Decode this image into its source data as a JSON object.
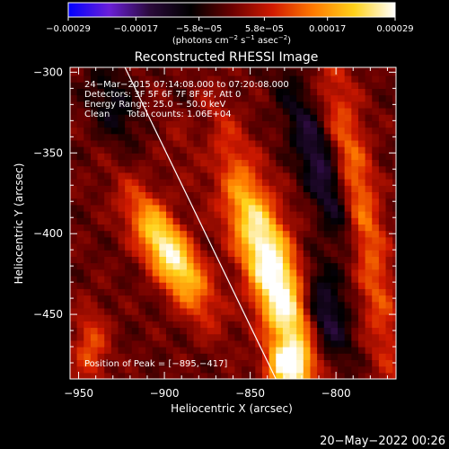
{
  "chart_data": {
    "type": "heatmap",
    "title": "Reconstructed RHESSI Image",
    "xlabel": "Heliocentric X (arcsec)",
    "ylabel": "Heliocentric Y (arcsec)",
    "xlim": [
      -955,
      -765
    ],
    "ylim": [
      -490,
      -297
    ],
    "x_ticks": [
      -950,
      -900,
      -850,
      -800
    ],
    "y_ticks": [
      -300,
      -350,
      -400,
      -450
    ],
    "x_tick_labels": [
      "−950",
      "−900",
      "−850",
      "−800"
    ],
    "y_tick_labels": [
      "−300",
      "−350",
      "−400",
      "−450"
    ],
    "colorbar": {
      "range": [
        -0.00029,
        0.00029
      ],
      "tick_values": [
        -0.00029,
        -0.00017,
        -5.8e-05,
        5.8e-05,
        0.00017,
        0.00029
      ],
      "tick_labels": [
        "−0.00029",
        "−0.00017",
        "−5.8e−05",
        "5.8e−05",
        "0.00017",
        "0.00029"
      ],
      "units_prefix": "(photons cm",
      "units_exp1": "−2",
      "units_mid1": " s",
      "units_exp2": "−1",
      "units_mid2": " asec",
      "units_exp3": "−2",
      "units_suffix": ")",
      "colors": [
        "#0000ff",
        "#6a1fd8",
        "#2a0a3a",
        "#000000",
        "#6a0000",
        "#d11a00",
        "#ff7a00",
        "#ffd21a",
        "#ffffff"
      ]
    },
    "annotations": {
      "time_range": "24−Mar−2015 07:14:08.000 to 07:20:08.000",
      "detectors": "Detectors: 3F 5F 6F 7F 8F 9F, Att 0",
      "energy": "Energy Range: 25.0 − 50.0 keV",
      "method": "Clean      Total counts: 1.06E+04",
      "peak": "Position of Peak = [−895,−417]"
    },
    "peak_position": [
      -895,
      -417
    ],
    "limb_line": [
      [
        -923,
        -297
      ],
      [
        -835,
        -490
      ]
    ],
    "sources": [
      {
        "x": -897,
        "y": -412,
        "sx": 9,
        "sy": 28,
        "theta": -0.52,
        "amp": 1.0
      },
      {
        "x": -848,
        "y": -392,
        "sx": 11,
        "sy": 44,
        "theta": -0.42,
        "amp": 0.72
      },
      {
        "x": -831,
        "y": -448,
        "sx": 10,
        "sy": 36,
        "theta": -0.3,
        "amp": 0.8
      },
      {
        "x": -829,
        "y": -482,
        "sx": 8,
        "sy": 9,
        "theta": 0,
        "amp": 0.85
      },
      {
        "x": -785,
        "y": -390,
        "sx": 8,
        "sy": 70,
        "theta": -0.18,
        "amp": 0.55
      },
      {
        "x": -879,
        "y": -338,
        "sx": 12,
        "sy": 20,
        "theta": -0.4,
        "amp": 0.3
      },
      {
        "x": -943,
        "y": -470,
        "sx": 7,
        "sy": 16,
        "theta": 0,
        "amp": 0.4
      },
      {
        "x": -876,
        "y": -343,
        "sx": 8,
        "sy": 26,
        "theta": -0.4,
        "amp": -0.5
      },
      {
        "x": -808,
        "y": -360,
        "sx": 8,
        "sy": 40,
        "theta": -0.35,
        "amp": -0.5
      },
      {
        "x": -807,
        "y": -450,
        "sx": 9,
        "sy": 22,
        "theta": -0.2,
        "amp": -0.55
      },
      {
        "x": -930,
        "y": -320,
        "sx": 9,
        "sy": 18,
        "theta": -0.3,
        "amp": -0.3
      }
    ]
  },
  "footer": {
    "date": "20−May−2022 00:26"
  }
}
